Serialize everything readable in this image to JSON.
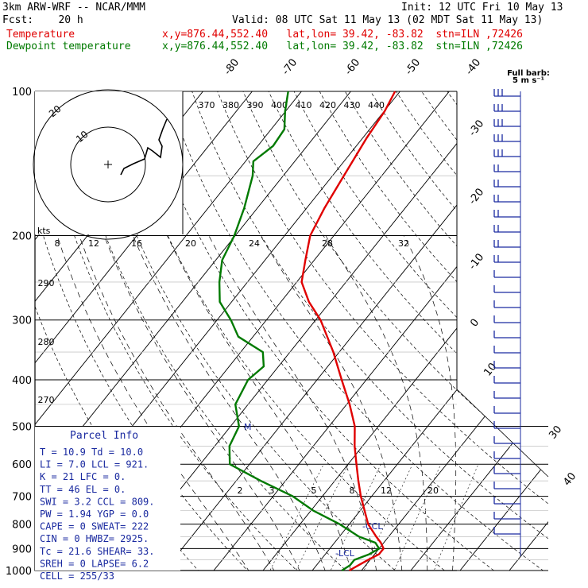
{
  "header": {
    "model": "3km ARW-WRF -- NCAR/MMM",
    "init": "Init: 12 UTC Fri 10 May 13",
    "fcst": "Fcst:    20 h",
    "valid": "Valid: 08 UTC Sat 11 May 13 (02 MDT Sat 11 May 13)",
    "temp_label": "Temperature",
    "temp_info": "x,y=876.44,552.40   lat,lon= 39.42, -83.82  stn=ILN ,72426",
    "dew_label": "Dewpoint temperature",
    "dew_info": "x,y=876.44,552.40   lat,lon= 39.42, -83.82  stn=ILN ,72426",
    "temp_color": "#e00000",
    "dew_color": "#007a00"
  },
  "chart_data": {
    "type": "line",
    "subtype": "skew-T log-p sounding",
    "pressure_ticks": [
      "100",
      "200",
      "300",
      "400",
      "500",
      "600",
      "700",
      "800",
      "900",
      "1000"
    ],
    "isotherm_labels": [
      "-80",
      "-70",
      "-60",
      "-50",
      "-40",
      "-30",
      "-20",
      "-10",
      "0",
      "10",
      "30",
      "40"
    ],
    "theta_labels": [
      "370",
      "380",
      "390",
      "400",
      "410",
      "420",
      "430",
      "440"
    ],
    "theta_left_labels": [
      "290",
      "280",
      "270"
    ],
    "mixing_ratio_labels": [
      "2",
      "3",
      "5",
      "8",
      "12",
      "20"
    ],
    "wind_barb_label": "Full barb:\n 5 m s⁻¹",
    "hodograph": {
      "unit_label": "kts",
      "ring_labels": [
        "8",
        "12",
        "16",
        "20",
        "24",
        "28",
        "32"
      ],
      "circle_labels": [
        "10",
        "20"
      ]
    },
    "series": [
      {
        "name": "Temperature",
        "color": "#e00000",
        "points": [
          [
            1000,
            7.5
          ],
          [
            975,
            8.5
          ],
          [
            950,
            9.6
          ],
          [
            925,
            10.9
          ],
          [
            900,
            10.9
          ],
          [
            875,
            9.4
          ],
          [
            850,
            7.5
          ],
          [
            800,
            3.8
          ],
          [
            700,
            -2.2
          ],
          [
            650,
            -5.2
          ],
          [
            600,
            -8.3
          ],
          [
            550,
            -11.6
          ],
          [
            500,
            -14.8
          ],
          [
            450,
            -19.4
          ],
          [
            400,
            -25.0
          ],
          [
            350,
            -31.2
          ],
          [
            300,
            -39.0
          ],
          [
            275,
            -44.3
          ],
          [
            250,
            -49.0
          ],
          [
            225,
            -51.8
          ],
          [
            200,
            -54.8
          ],
          [
            175,
            -56.4
          ],
          [
            150,
            -57.7
          ],
          [
            125,
            -59.2
          ],
          [
            110,
            -59.9
          ],
          [
            100,
            -61.0
          ]
        ]
      },
      {
        "name": "Dewpoint temperature",
        "color": "#007a00",
        "points": [
          [
            1000,
            6.0
          ],
          [
            975,
            6.8
          ],
          [
            950,
            6.8
          ],
          [
            925,
            8.9
          ],
          [
            900,
            10.0
          ],
          [
            875,
            8.3
          ],
          [
            850,
            4.0
          ],
          [
            800,
            -2.0
          ],
          [
            750,
            -9.5
          ],
          [
            700,
            -16.0
          ],
          [
            650,
            -25.0
          ],
          [
            600,
            -34.0
          ],
          [
            550,
            -37.0
          ],
          [
            500,
            -38.3
          ],
          [
            450,
            -42.6
          ],
          [
            400,
            -44.0
          ],
          [
            375,
            -43.0
          ],
          [
            350,
            -45.5
          ],
          [
            325,
            -53.0
          ],
          [
            300,
            -57.2
          ],
          [
            275,
            -62.4
          ],
          [
            250,
            -65.7
          ],
          [
            225,
            -68.7
          ],
          [
            200,
            -70.2
          ],
          [
            175,
            -72.7
          ],
          [
            150,
            -76.2
          ],
          [
            140,
            -78.4
          ],
          [
            130,
            -76.9
          ],
          [
            120,
            -77.3
          ],
          [
            110,
            -80.1
          ],
          [
            100,
            -82.7
          ]
        ]
      }
    ],
    "annotations": {
      "lcl": "-LCL",
      "ccl": "-CCL",
      "el_mark": "M"
    }
  },
  "parcel_info": {
    "title": "Parcel Info",
    "rows": [
      "T   =    10.9  Td =  10.0",
      "LI  =     7.0  LCL =  921.",
      "K   =      21  LFC =    0.",
      "TT  =      46  EL  =    0.",
      "SWI =     3.2  CCL =  809.",
      "PW  =    1.94  YGP =   0.0",
      "CAPE =      0  SWEAT=  222",
      "CIN  =      0  HWBZ= 2925.",
      "Tc   =   21.6  SHEAR=  33.",
      "SREH =      0  LAPSE=  6.2",
      "CELL = 255/33"
    ]
  }
}
